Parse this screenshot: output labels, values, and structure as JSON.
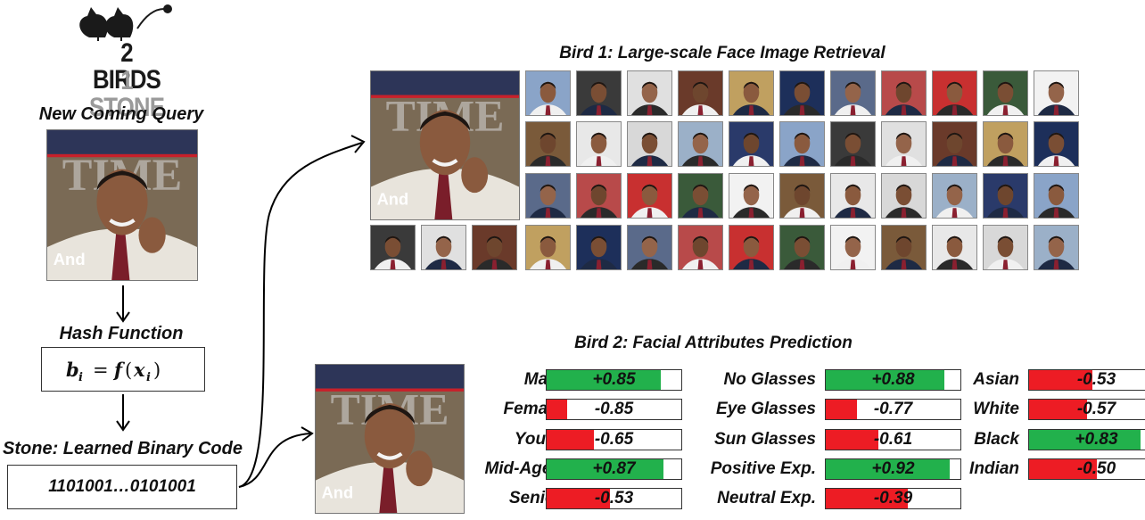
{
  "logo": {
    "line1": "2 BIRDS",
    "line2": "1 STONE"
  },
  "query_label": "New Coming Query",
  "hash_label": "Hash Function",
  "stone_label": "Stone: Learned Binary Code",
  "binary_code": "1101001…0101001",
  "bird1_title": "Bird 1: Large-scale Face Image Retrieval",
  "bird2_title": "Bird 2: Facial Attributes Prediction",
  "colors": {
    "positive": "#22b14c",
    "negative": "#ed1c24",
    "arrow": "#000000"
  },
  "attributes": [
    [
      {
        "label": "Male",
        "value": "+0.85",
        "score": 0.85
      },
      {
        "label": "Female",
        "value": "-0.85",
        "score": -0.85
      },
      {
        "label": "Youth",
        "value": "-0.65",
        "score": -0.65
      },
      {
        "label": "Mid-Aged",
        "value": "+0.87",
        "score": 0.87
      },
      {
        "label": "Senior",
        "value": "-0.53",
        "score": -0.53
      }
    ],
    [
      {
        "label": "No Glasses",
        "value": "+0.88",
        "score": 0.88
      },
      {
        "label": "Eye Glasses",
        "value": "-0.77",
        "score": -0.77
      },
      {
        "label": "Sun Glasses",
        "value": "-0.61",
        "score": -0.61
      },
      {
        "label": "Positive Exp.",
        "value": "+0.92",
        "score": 0.92
      },
      {
        "label": "Neutral Exp.",
        "value": "-0.39",
        "score": -0.39
      }
    ],
    [
      {
        "label": "Asian",
        "value": "-0.53",
        "score": -0.53
      },
      {
        "label": "White",
        "value": "-0.57",
        "score": -0.57
      },
      {
        "label": "Black",
        "value": "+0.83",
        "score": 0.83
      },
      {
        "label": "Indian",
        "value": "-0.50",
        "score": -0.5
      }
    ]
  ]
}
